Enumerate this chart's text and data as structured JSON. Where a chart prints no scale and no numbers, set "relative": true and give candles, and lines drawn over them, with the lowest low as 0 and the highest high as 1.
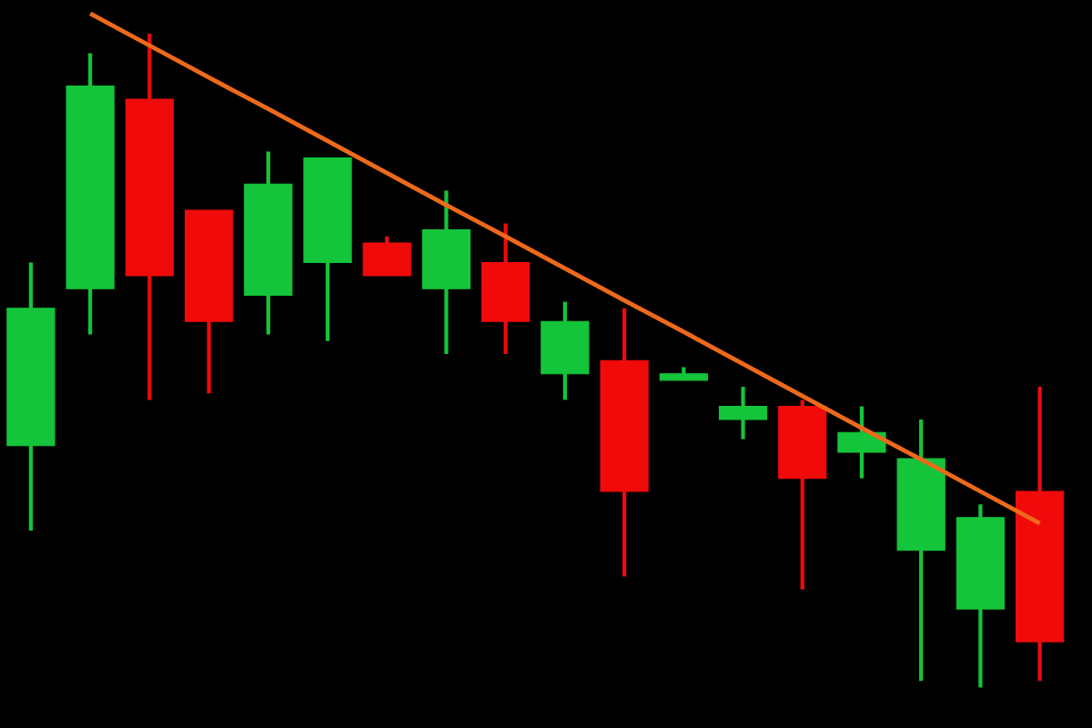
{
  "chart_data": {
    "type": "candlestick",
    "relative": true,
    "categories": [
      null,
      null,
      null,
      null,
      null,
      null,
      null,
      null,
      null,
      null,
      null,
      null,
      null,
      null,
      null,
      null,
      null,
      null
    ],
    "ohlc": [
      [
        0.37,
        0.65,
        0.24,
        0.58
      ],
      [
        0.61,
        0.97,
        0.54,
        0.92
      ],
      [
        0.9,
        1.0,
        0.44,
        0.63
      ],
      [
        0.73,
        0.73,
        0.45,
        0.56
      ],
      [
        0.6,
        0.82,
        0.54,
        0.77
      ],
      [
        0.65,
        0.81,
        0.53,
        0.81
      ],
      [
        0.68,
        0.69,
        0.63,
        0.63
      ],
      [
        0.61,
        0.76,
        0.51,
        0.7
      ],
      [
        0.65,
        0.71,
        0.51,
        0.56
      ],
      [
        0.48,
        0.59,
        0.44,
        0.56
      ],
      [
        0.5,
        0.58,
        0.17,
        0.3
      ],
      [
        0.47,
        0.49,
        0.47,
        0.48
      ],
      [
        0.41,
        0.46,
        0.38,
        0.43
      ],
      [
        0.43,
        0.44,
        0.15,
        0.32
      ],
      [
        0.36,
        0.43,
        0.32,
        0.39
      ],
      [
        0.21,
        0.41,
        0.01,
        0.35
      ],
      [
        0.12,
        0.28,
        0.0,
        0.26
      ],
      [
        0.3,
        0.46,
        0.01,
        0.07
      ]
    ],
    "colors": [
      "#14c43a",
      "#14c43a",
      "#f00a0a",
      "#f00a0a",
      "#14c43a",
      "#14c43a",
      "#f00a0a",
      "#14c43a",
      "#f00a0a",
      "#14c43a",
      "#f00a0a",
      "#14c43a",
      "#14c43a",
      "#f00a0a",
      "#14c43a",
      "#14c43a",
      "#14c43a",
      "#f00a0a"
    ],
    "series": [
      {
        "type": "line",
        "values": [
          null,
          1.031,
          0.982,
          0.933,
          0.885,
          0.836,
          0.787,
          0.738,
          0.69,
          0.641,
          0.592,
          0.544,
          0.495,
          0.446,
          0.397,
          0.349,
          0.3,
          0.251
        ],
        "color": "#ee6a1a"
      }
    ]
  }
}
